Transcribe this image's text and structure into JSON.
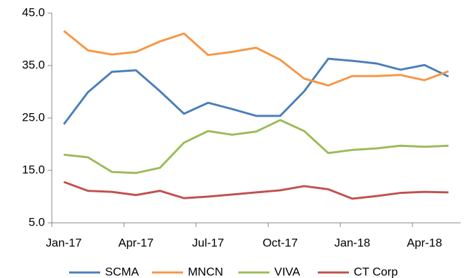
{
  "chart_data": {
    "type": "line",
    "categories": [
      "Jan-17",
      null,
      null,
      "Apr-17",
      null,
      null,
      "Jul-17",
      null,
      null,
      "Oct-17",
      null,
      null,
      "Jan-18",
      null,
      null,
      "Apr-18",
      null
    ],
    "series": [
      {
        "name": "SCMA",
        "color": "#4a7ebb",
        "values": [
          23.8,
          29.9,
          33.8,
          34.1,
          30.1,
          25.8,
          27.9,
          26.7,
          25.4,
          25.4,
          30.1,
          36.3,
          35.9,
          35.4,
          34.2,
          35.1,
          32.9
        ]
      },
      {
        "name": "MNCN",
        "color": "#f79646",
        "values": [
          41.6,
          37.9,
          37.1,
          37.6,
          39.6,
          41.1,
          37.0,
          37.6,
          38.4,
          36.1,
          32.5,
          31.2,
          33.0,
          33.0,
          33.2,
          32.2,
          33.9
        ]
      },
      {
        "name": "VIVA",
        "color": "#9bbb59",
        "values": [
          18.0,
          17.5,
          14.7,
          14.5,
          15.5,
          20.3,
          22.5,
          21.8,
          22.4,
          24.6,
          22.5,
          18.3,
          18.9,
          19.2,
          19.7,
          19.5,
          19.7
        ]
      },
      {
        "name": "CT Corp",
        "color": "#c0504d",
        "values": [
          12.8,
          11.1,
          10.9,
          10.3,
          11.1,
          9.7,
          10.0,
          10.4,
          10.8,
          11.2,
          12.0,
          11.4,
          9.6,
          10.1,
          10.7,
          10.9,
          10.8
        ]
      }
    ],
    "ylim": [
      5,
      45
    ],
    "yticks": [
      {
        "value": 5,
        "label": "5.0"
      },
      {
        "value": 15,
        "label": "15.0"
      },
      {
        "value": 25,
        "label": "25.0"
      },
      {
        "value": 35,
        "label": "35.0"
      },
      {
        "value": 45,
        "label": "45.0"
      }
    ],
    "grid": false,
    "legend": "bottom"
  }
}
